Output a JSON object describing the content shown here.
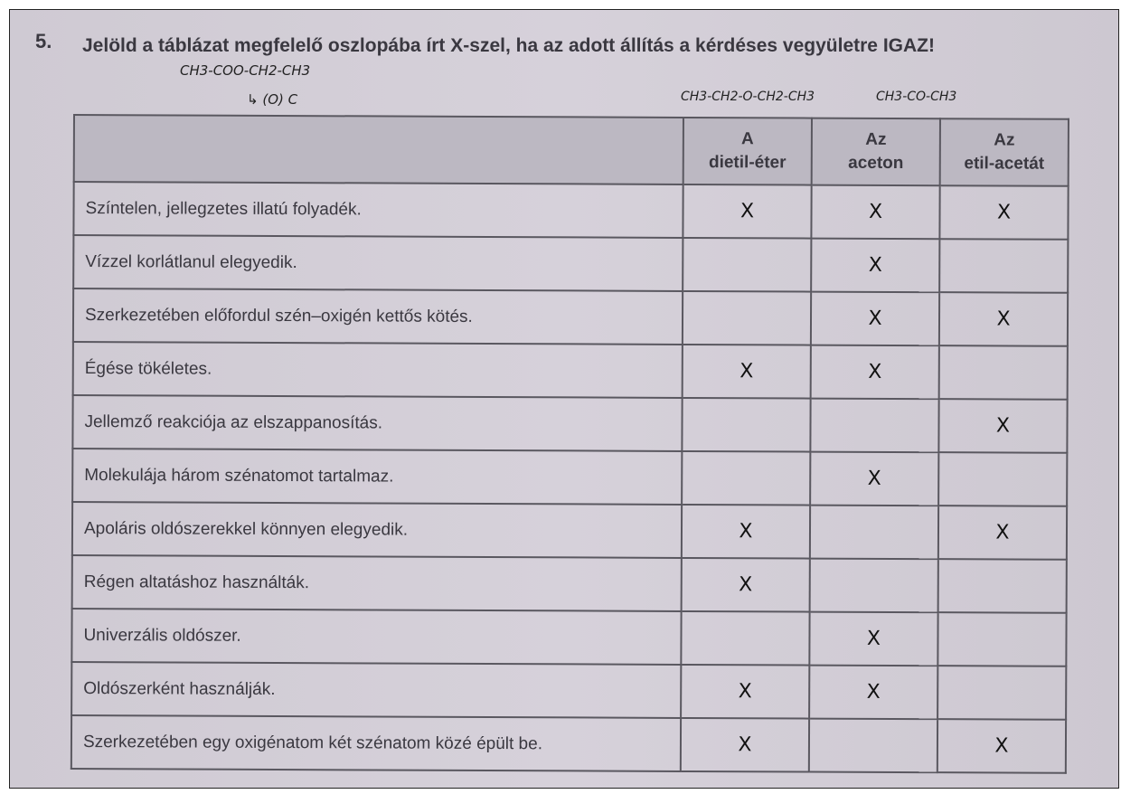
{
  "question": {
    "number": "5.",
    "text": "Jelöld a táblázat megfelelő oszlopába írt X-szel, ha az adott állítás a kérdéses vegyületre IGAZ!"
  },
  "handwriting": {
    "ester_formula": "CH3-COO-CH2-CH3",
    "ester_note": "↳ (O) C",
    "ether_formula": "CH3-CH2-O-CH2-CH3",
    "ketone_formula": "CH3-CO-CH3"
  },
  "table": {
    "columns": [
      {
        "line1": "A",
        "line2": "dietil-éter"
      },
      {
        "line1": "Az",
        "line2": "aceton"
      },
      {
        "line1": "Az",
        "line2": "etil-acetát"
      }
    ],
    "mark_symbol": "X",
    "rows": [
      {
        "statement": "Színtelen, jellegzetes illatú folyadék.",
        "marks": [
          "X",
          "X",
          "X"
        ]
      },
      {
        "statement": "Vízzel korlátlanul elegyedik.",
        "marks": [
          "",
          "X",
          ""
        ]
      },
      {
        "statement": "Szerkezetében előfordul szén–oxigén kettős kötés.",
        "marks": [
          "",
          "X",
          "X"
        ]
      },
      {
        "statement": "Égése tökéletes.",
        "marks": [
          "X",
          "X",
          ""
        ]
      },
      {
        "statement": "Jellemző reakciója az elszappanosítás.",
        "marks": [
          "",
          "",
          "X"
        ]
      },
      {
        "statement": "Molekulája három szénatomot tartalmaz.",
        "marks": [
          "",
          "X",
          ""
        ]
      },
      {
        "statement": "Apoláris oldószerekkel könnyen elegyedik.",
        "marks": [
          "X",
          "",
          "X"
        ]
      },
      {
        "statement": "Régen altatáshoz használták.",
        "marks": [
          "X",
          "",
          ""
        ]
      },
      {
        "statement": "Univerzális oldószer.",
        "marks": [
          "",
          "X",
          ""
        ]
      },
      {
        "statement": "Oldószerként használják.",
        "marks": [
          "X",
          "X",
          ""
        ]
      },
      {
        "statement": "Szerkezetében egy oxigénatom két szénatom közé épült be.",
        "marks": [
          "X",
          "",
          "X"
        ]
      }
    ]
  }
}
